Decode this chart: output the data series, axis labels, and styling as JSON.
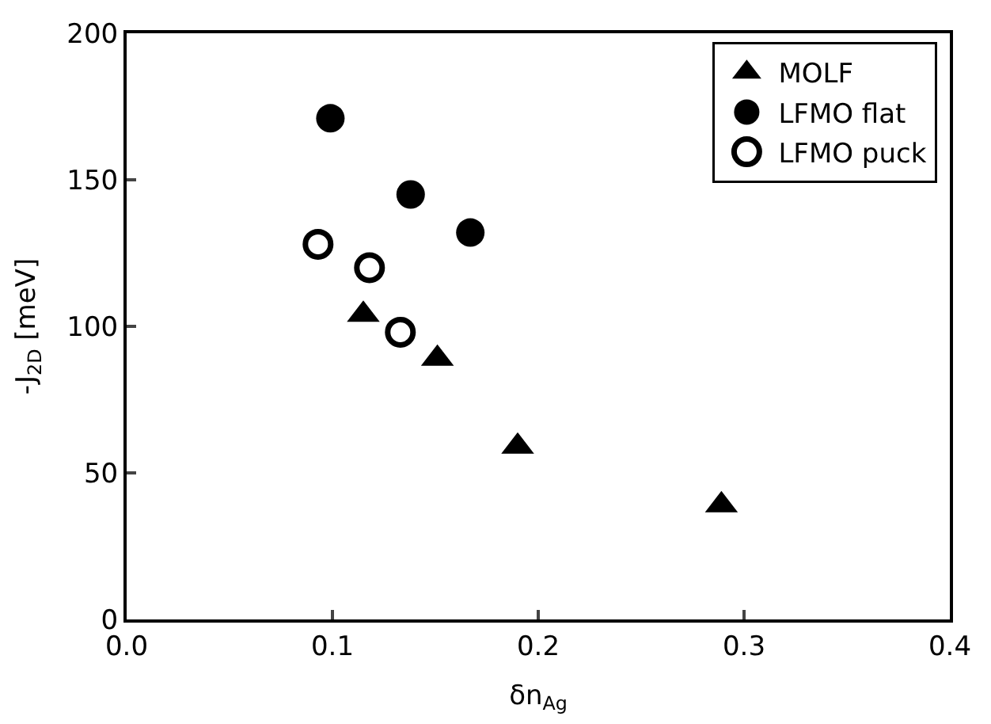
{
  "chart_data": {
    "type": "scatter",
    "xlabel": "δn$_{Ag}$",
    "ylabel": "-J$_{2D}$ [meV]",
    "xlim": [
      0,
      0.4
    ],
    "xticks": [
      {
        "value": 0,
        "label": "0.0"
      },
      0.1,
      0.2,
      0.3,
      0.4
    ],
    "ylim": [
      0,
      200
    ],
    "yticks": [
      0,
      50,
      100,
      150,
      200
    ],
    "legend": "top right",
    "series": [
      {
        "name": "MOLF",
        "color": "#000000",
        "marker": "triangle",
        "x": [
          0.115,
          0.151,
          0.19,
          0.289
        ],
        "values": [
          104,
          89,
          59,
          39
        ]
      },
      {
        "name": "LFMO flat",
        "color": "#000000",
        "marker": "circle",
        "x": [
          0.099,
          0.138,
          0.167
        ],
        "values": [
          171,
          145,
          132
        ]
      },
      {
        "name": "LFMO puck",
        "color": "#000000",
        "marker": "open circle",
        "x": [
          0.093,
          0.118,
          0.133
        ],
        "values": [
          128,
          120,
          98
        ]
      }
    ]
  }
}
